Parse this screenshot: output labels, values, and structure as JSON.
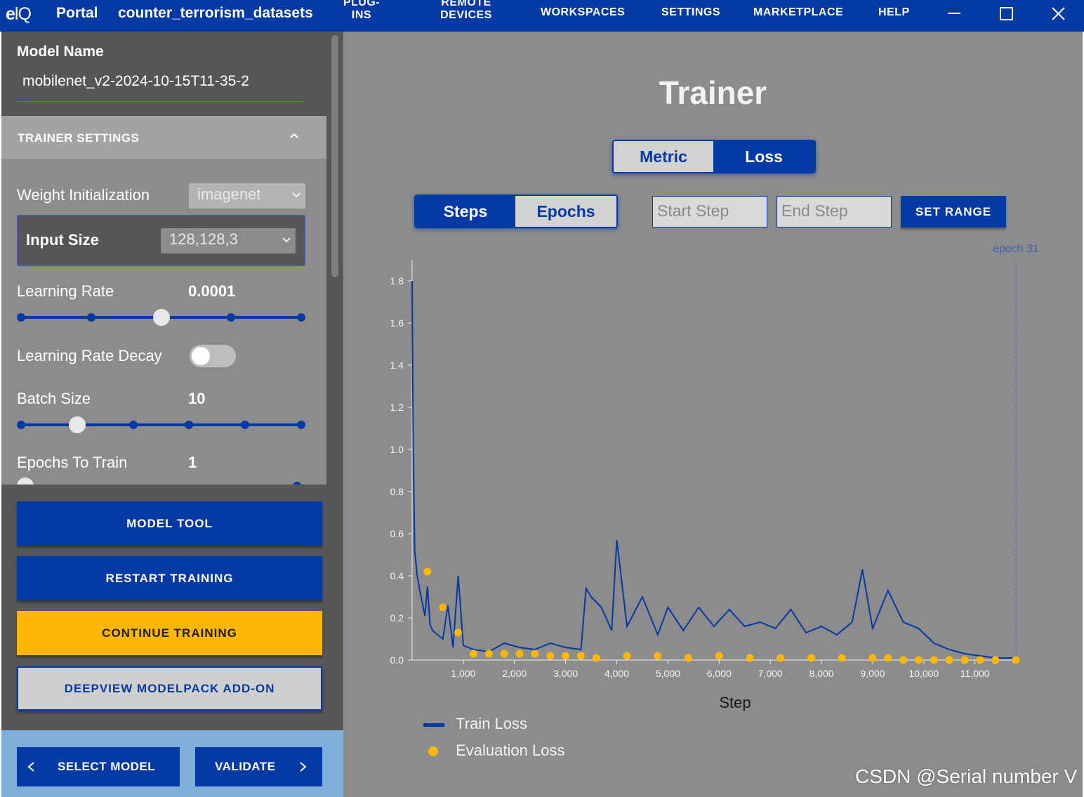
{
  "header": {
    "logo_main": "e",
    "logo_q": "lQ",
    "app_title": "Portal",
    "workspace": "counter_terrorism_datasets",
    "nav": {
      "plugins_line1": "PLUG-",
      "plugins_line2": "INS",
      "remote_line1": "REMOTE",
      "remote_line2": "DEVICES",
      "workspaces": "WORKSPACES",
      "settings": "SETTINGS",
      "marketplace": "MARKETPLACE",
      "help": "HELP"
    }
  },
  "sidebar": {
    "model_name_label": "Model Name",
    "model_name_value": "mobilenet_v2-2024-10-15T11-35-2",
    "trainer_settings_label": "TRAINER SETTINGS",
    "weight_init_label": "Weight Initialization",
    "weight_init_value": "imagenet",
    "input_size_label": "Input Size",
    "input_size_value": "128,128,3",
    "learning_rate_label": "Learning Rate",
    "learning_rate_value": "0.0001",
    "learning_rate_steps": 5,
    "learning_rate_index": 2,
    "lr_decay_label": "Learning Rate Decay",
    "lr_decay_on": false,
    "batch_size_label": "Batch Size",
    "batch_size_value": "10",
    "batch_size_steps": 6,
    "batch_size_index": 1,
    "epochs_label": "Epochs To Train",
    "epochs_value": "1",
    "buttons": {
      "model_tool": "MODEL TOOL",
      "restart": "RESTART TRAINING",
      "continue": "CONTINUE TRAINING",
      "deepview": "DEEPVIEW MODELPACK ADD-ON"
    },
    "footer": {
      "select_model": "SELECT MODEL",
      "validate": "VALIDATE"
    }
  },
  "main": {
    "title": "Trainer",
    "metric_tab": "Metric",
    "loss_tab": "Loss",
    "steps_tab": "Steps",
    "epochs_tab": "Epochs",
    "start_step_placeholder": "Start Step",
    "end_step_placeholder": "End Step",
    "set_range": "SET RANGE",
    "legend_train": "Train Loss",
    "legend_eval": "Evaluation Loss",
    "watermark": "CSDN @Serial number V"
  },
  "colors": {
    "brand_blue": "#0539a4",
    "eval_yellow": "#fbb703",
    "panel_grey": "#8c8c8c"
  },
  "chart_data": {
    "type": "line",
    "xlabel": "Step",
    "ylabel": "",
    "xlim": [
      0,
      11800
    ],
    "ylim": [
      0,
      1.9
    ],
    "xticks": [
      1000,
      2000,
      3000,
      4000,
      5000,
      6000,
      7000,
      8000,
      9000,
      10000,
      11000
    ],
    "xtick_labels": [
      "1,000",
      "2,000",
      "3,000",
      "4,000",
      "5,000",
      "6,000",
      "7,000",
      "8,000",
      "9,000",
      "10,000",
      "11,000"
    ],
    "yticks": [
      0.0,
      0.2,
      0.4,
      0.6,
      0.8,
      1.0,
      1.2,
      1.4,
      1.6,
      1.8
    ],
    "ytick_labels": [
      "0.0",
      "0.2",
      "0.4",
      "0.6",
      "0.8",
      "1.0",
      "1.2",
      "1.4",
      "1.6",
      "1.8"
    ],
    "marker_line": {
      "x": 11800,
      "label": "epoch 31"
    },
    "series": [
      {
        "name": "Train Loss",
        "kind": "line",
        "color": "#0539a4",
        "x": [
          0,
          20,
          50,
          100,
          150,
          200,
          250,
          300,
          350,
          400,
          500,
          600,
          700,
          800,
          900,
          1000,
          1200,
          1500,
          1800,
          2100,
          2400,
          2700,
          3000,
          3300,
          3400,
          3500,
          3700,
          3900,
          4000,
          4200,
          4500,
          4800,
          5000,
          5300,
          5600,
          5900,
          6200,
          6500,
          6800,
          7100,
          7400,
          7700,
          8000,
          8300,
          8600,
          8800,
          9000,
          9300,
          9600,
          9900,
          10200,
          10500,
          10800,
          11100,
          11400,
          11800
        ],
        "y": [
          1.8,
          1.05,
          0.52,
          0.4,
          0.33,
          0.27,
          0.21,
          0.35,
          0.17,
          0.14,
          0.12,
          0.1,
          0.26,
          0.06,
          0.4,
          0.07,
          0.05,
          0.04,
          0.08,
          0.06,
          0.05,
          0.08,
          0.06,
          0.05,
          0.34,
          0.3,
          0.25,
          0.14,
          0.57,
          0.16,
          0.3,
          0.12,
          0.25,
          0.14,
          0.25,
          0.16,
          0.24,
          0.16,
          0.18,
          0.15,
          0.24,
          0.13,
          0.16,
          0.12,
          0.18,
          0.43,
          0.15,
          0.33,
          0.18,
          0.15,
          0.08,
          0.05,
          0.03,
          0.02,
          0.01,
          0.01
        ]
      },
      {
        "name": "Evaluation Loss",
        "kind": "scatter",
        "color": "#fbb703",
        "x": [
          300,
          600,
          900,
          1200,
          1500,
          1800,
          2100,
          2400,
          2700,
          3000,
          3300,
          3600,
          4200,
          4800,
          5400,
          6000,
          6600,
          7200,
          7800,
          8400,
          9000,
          9300,
          9600,
          9900,
          10200,
          10500,
          10800,
          11100,
          11400,
          11800
        ],
        "y": [
          0.42,
          0.25,
          0.13,
          0.03,
          0.03,
          0.03,
          0.03,
          0.03,
          0.02,
          0.02,
          0.02,
          0.01,
          0.02,
          0.02,
          0.01,
          0.02,
          0.01,
          0.01,
          0.01,
          0.01,
          0.01,
          0.01,
          0.0,
          0.0,
          0.0,
          0.0,
          0.0,
          0.0,
          0.0,
          0.0
        ]
      }
    ]
  }
}
